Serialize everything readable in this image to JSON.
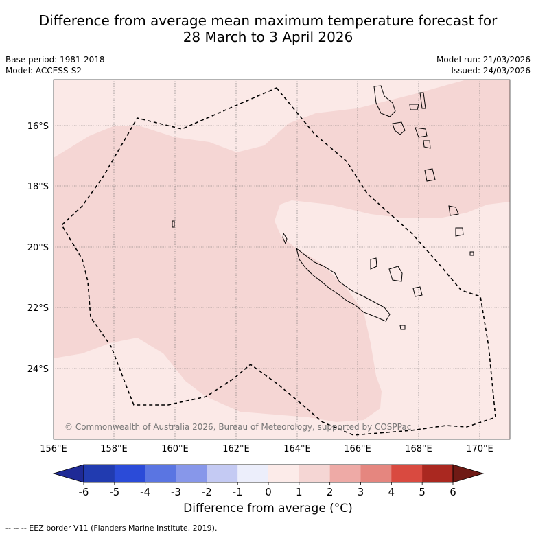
{
  "title": {
    "line1": "Difference from average mean maximum temperature forecast for",
    "line2": "28 March to 3 April 2026"
  },
  "meta": {
    "base_period": "Base period: 1981-2018",
    "model": "Model: ACCESS-S2",
    "model_run": "Model run: 21/03/2026",
    "issued": "Issued: 24/03/2026"
  },
  "map": {
    "lat_labels": [
      "16°S",
      "18°S",
      "20°S",
      "22°S",
      "24°S"
    ],
    "lon_labels": [
      "156°E",
      "158°E",
      "160°E",
      "162°E",
      "164°E",
      "166°E",
      "168°E",
      "170°E"
    ],
    "copyright": "© Commonwealth of Australia 2026, Bureau of Meteorology, supported by COSPPac"
  },
  "colorbar": {
    "ticks": [
      "-6",
      "-5",
      "-4",
      "-3",
      "-2",
      "-1",
      "0",
      "1",
      "2",
      "3",
      "4",
      "5",
      "6"
    ],
    "title": "Difference from average (°C)",
    "colors": [
      "#1f2a96",
      "#213bb0",
      "#2b4bd8",
      "#5a75e2",
      "#8797ea",
      "#c4caf3",
      "#eceefb",
      "#fcebe9",
      "#f5d6d4",
      "#eeaaa6",
      "#e5867f",
      "#d94a40",
      "#aa2820",
      "#6f1a15"
    ],
    "low_color": "#1f2a96",
    "high_color": "#6f1a15"
  },
  "footnote": "--  --  -- EEZ border V11 (Flanders Marine Institute, 2019)."
}
